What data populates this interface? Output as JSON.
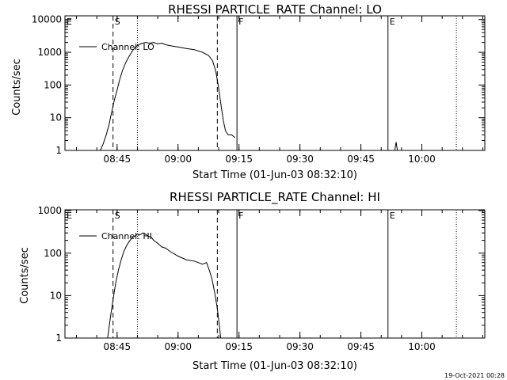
{
  "chart_data": [
    {
      "type": "line",
      "title": "RHESSI PARTICLE_RATE Channel: LO",
      "xlabel": "Start Time (01-Jun-03 08:32:10)",
      "ylabel": "Counts/sec",
      "x_ticks": [
        "08:45",
        "09:00",
        "09:15",
        "09:30",
        "09:45",
        "10:00"
      ],
      "y_ticks": [
        "1",
        "10",
        "100",
        "1000",
        "10000"
      ],
      "yscale": "log",
      "xlim": [
        "08:32:10",
        "10:15:30"
      ],
      "ylim": [
        1,
        13000
      ],
      "legend": "top-left",
      "series": [
        {
          "name": "Channel: LO",
          "x": [
            "08:40:50",
            "08:41:30",
            "08:42:20",
            "08:43:00",
            "08:43:40",
            "08:44:20",
            "08:45:00",
            "08:45:40",
            "08:46:20",
            "08:47:00",
            "08:47:40",
            "08:48:20",
            "08:49:00",
            "08:49:40",
            "08:50:20",
            "08:51:00",
            "08:52:00",
            "08:53:00",
            "08:54:00",
            "08:55:00",
            "08:56:00",
            "08:57:00",
            "08:58:00",
            "09:00:00",
            "09:02:00",
            "09:04:00",
            "09:06:00",
            "09:07:30",
            "09:08:30",
            "09:09:20",
            "09:10:00",
            "09:10:40",
            "09:11:10",
            "09:11:40",
            "09:12:20",
            "09:13:10",
            "09:14:00"
          ],
          "values": [
            1,
            1.5,
            3,
            6,
            15,
            35,
            70,
            150,
            280,
            450,
            650,
            900,
            1200,
            1500,
            1700,
            1850,
            2000,
            1900,
            2000,
            1800,
            1900,
            1700,
            1600,
            1450,
            1300,
            1200,
            1000,
            800,
            550,
            250,
            80,
            20,
            8,
            4,
            3,
            3,
            2.5
          ]
        }
      ],
      "events": [
        {
          "x": "08:32:10",
          "label": "E",
          "style": "solid"
        },
        {
          "x": "08:44:00",
          "label": "S",
          "style": "dashed"
        },
        {
          "x": "08:50:00",
          "label": "",
          "style": "dotted"
        },
        {
          "x": "09:09:40",
          "label": "",
          "style": "dashed"
        },
        {
          "x": "09:14:30",
          "label": "F",
          "style": "solid"
        },
        {
          "x": "09:51:40",
          "label": "E",
          "style": "solid"
        },
        {
          "x": "10:08:30",
          "label": "",
          "style": "dotted"
        }
      ],
      "glitch": {
        "x": [
          "09:53:20",
          "09:53:40",
          "09:54:00"
        ],
        "values": [
          1,
          1.8,
          1
        ]
      }
    },
    {
      "type": "line",
      "title": "RHESSI PARTICLE_RATE Channel: HI",
      "xlabel": "Start Time (01-Jun-03 08:32:10)",
      "ylabel": "Counts/sec",
      "x_ticks": [
        "08:45",
        "09:00",
        "09:15",
        "09:30",
        "09:45",
        "10:00"
      ],
      "y_ticks": [
        "1",
        "10",
        "100",
        "1000"
      ],
      "yscale": "log",
      "xlim": [
        "08:32:10",
        "10:15:30"
      ],
      "ylim": [
        1,
        1050
      ],
      "legend": "top-left",
      "series": [
        {
          "name": "Channel: HI",
          "x": [
            "08:42:40",
            "08:43:20",
            "08:44:00",
            "08:44:40",
            "08:45:20",
            "08:46:00",
            "08:46:40",
            "08:47:20",
            "08:48:00",
            "08:48:40",
            "08:49:20",
            "08:50:00",
            "08:50:40",
            "08:51:20",
            "08:52:00",
            "08:52:40",
            "08:53:20",
            "08:54:00",
            "08:55:00",
            "08:56:00",
            "08:57:00",
            "08:58:00",
            "09:00:00",
            "09:02:00",
            "09:04:00",
            "09:06:00",
            "09:07:00",
            "09:07:40",
            "09:08:20",
            "09:09:00",
            "09:09:40",
            "09:10:10",
            "09:10:30"
          ],
          "values": [
            1,
            3,
            8,
            20,
            40,
            70,
            110,
            150,
            190,
            230,
            250,
            280,
            270,
            300,
            280,
            250,
            240,
            200,
            170,
            140,
            130,
            110,
            85,
            70,
            65,
            55,
            60,
            40,
            25,
            12,
            5,
            2,
            1
          ]
        }
      ],
      "events": [
        {
          "x": "08:32:10",
          "label": "E",
          "style": "solid"
        },
        {
          "x": "08:44:00",
          "label": "S",
          "style": "dashed"
        },
        {
          "x": "08:50:00",
          "label": "",
          "style": "dotted"
        },
        {
          "x": "09:09:40",
          "label": "",
          "style": "dashed"
        },
        {
          "x": "09:14:30",
          "label": "F",
          "style": "solid"
        },
        {
          "x": "09:51:40",
          "label": "E",
          "style": "solid"
        },
        {
          "x": "10:08:30",
          "label": "",
          "style": "dotted"
        }
      ]
    }
  ],
  "footer": {
    "timestamp": "19-Oct-2021 00:28"
  }
}
